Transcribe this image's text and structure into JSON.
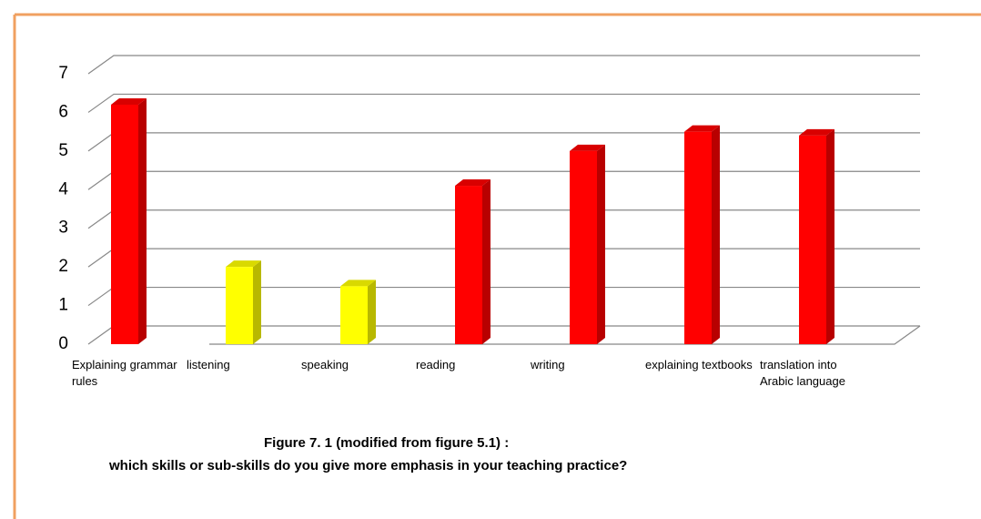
{
  "chart_data": {
    "type": "bar3d",
    "title": "Figure 7. 1 (modified from figure 5.1) :",
    "subtitle": "which skills or sub-skills do you give more emphasis in your teaching practice?",
    "categories": [
      "Explaining grammar rules",
      "listening",
      "speaking",
      "reading",
      "writing",
      "explaining textbooks",
      "translation into Arabic language"
    ],
    "values": [
      6.2,
      2,
      1.5,
      4.1,
      5,
      5.5,
      5.4
    ],
    "colors": [
      "#ff0000",
      "#ffff00",
      "#ffff00",
      "#ff0000",
      "#ff0000",
      "#ff0000",
      "#ff0000"
    ],
    "ylim": [
      0,
      7
    ],
    "yticks": [
      0,
      1,
      2,
      3,
      4,
      5,
      6,
      7
    ],
    "grid": true
  }
}
